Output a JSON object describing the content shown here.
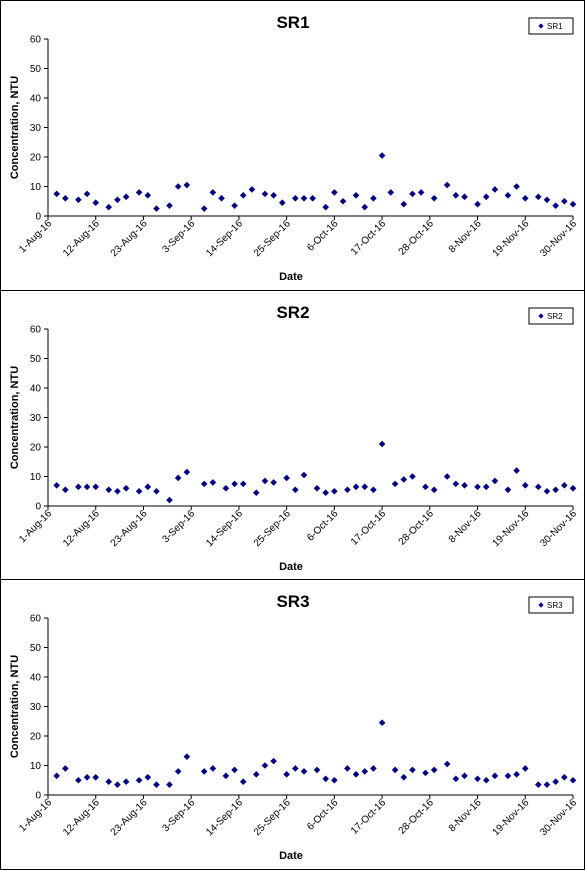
{
  "chart_data": [
    {
      "type": "scatter",
      "title": "SR1",
      "xlabel": "Date",
      "ylabel": "Concentration, NTU",
      "ylim": [
        0,
        60
      ],
      "yticks": [
        "0",
        "10",
        "20",
        "30",
        "40",
        "50",
        "60"
      ],
      "xlim": [
        "2016-08-01",
        "2016-11-30"
      ],
      "xticks": [
        "1-Aug-16",
        "12-Aug-16",
        "23-Aug-16",
        "3-Sep-16",
        "14-Sep-16",
        "25-Sep-16",
        "6-Oct-16",
        "17-Oct-16",
        "28-Oct-16",
        "8-Nov-16",
        "19-Nov-16",
        "30-Nov-16"
      ],
      "grid": false,
      "legend_position": "top-right",
      "marker_color": "#000080",
      "series": [
        {
          "name": "SR1",
          "x": [
            "2016-08-03",
            "2016-08-05",
            "2016-08-08",
            "2016-08-10",
            "2016-08-12",
            "2016-08-15",
            "2016-08-17",
            "2016-08-19",
            "2016-08-22",
            "2016-08-24",
            "2016-08-26",
            "2016-08-29",
            "2016-08-31",
            "2016-09-02",
            "2016-09-06",
            "2016-09-08",
            "2016-09-10",
            "2016-09-13",
            "2016-09-15",
            "2016-09-17",
            "2016-09-20",
            "2016-09-22",
            "2016-09-24",
            "2016-09-27",
            "2016-09-29",
            "2016-10-01",
            "2016-10-04",
            "2016-10-06",
            "2016-10-08",
            "2016-10-11",
            "2016-10-13",
            "2016-10-15",
            "2016-10-17",
            "2016-10-19",
            "2016-10-22",
            "2016-10-24",
            "2016-10-26",
            "2016-10-29",
            "2016-11-01",
            "2016-11-03",
            "2016-11-05",
            "2016-11-08",
            "2016-11-10",
            "2016-11-12",
            "2016-11-15",
            "2016-11-17",
            "2016-11-19",
            "2016-11-22",
            "2016-11-24",
            "2016-11-26",
            "2016-11-28",
            "2016-11-30"
          ],
          "y": [
            7.5,
            6,
            5.5,
            7.5,
            4.5,
            3,
            5.5,
            6.5,
            8,
            7,
            2.5,
            3.5,
            10,
            10.5,
            2.5,
            8,
            6,
            3.5,
            7,
            9,
            7.5,
            7,
            4.5,
            6,
            6,
            6,
            3,
            8,
            5,
            7,
            3,
            6,
            20.5,
            8,
            4,
            7.5,
            8,
            6,
            10.5,
            7,
            6.5,
            4,
            6.5,
            9,
            7,
            10,
            6,
            6.5,
            5.5,
            3.5,
            5,
            4
          ]
        }
      ]
    },
    {
      "type": "scatter",
      "title": "SR2",
      "xlabel": "Date",
      "ylabel": "Concentration, NTU",
      "ylim": [
        0,
        60
      ],
      "yticks": [
        "0",
        "10",
        "20",
        "30",
        "40",
        "50",
        "60"
      ],
      "xlim": [
        "2016-08-01",
        "2016-11-30"
      ],
      "xticks": [
        "1-Aug-16",
        "12-Aug-16",
        "23-Aug-16",
        "3-Sep-16",
        "14-Sep-16",
        "25-Sep-16",
        "6-Oct-16",
        "17-Oct-16",
        "28-Oct-16",
        "8-Nov-16",
        "19-Nov-16",
        "30-Nov-16"
      ],
      "grid": false,
      "legend_position": "top-right",
      "marker_color": "#000080",
      "series": [
        {
          "name": "SR2",
          "x": [
            "2016-08-03",
            "2016-08-05",
            "2016-08-08",
            "2016-08-10",
            "2016-08-12",
            "2016-08-15",
            "2016-08-17",
            "2016-08-19",
            "2016-08-22",
            "2016-08-24",
            "2016-08-26",
            "2016-08-29",
            "2016-08-31",
            "2016-09-02",
            "2016-09-06",
            "2016-09-08",
            "2016-09-11",
            "2016-09-13",
            "2016-09-15",
            "2016-09-18",
            "2016-09-20",
            "2016-09-22",
            "2016-09-25",
            "2016-09-27",
            "2016-09-29",
            "2016-10-02",
            "2016-10-04",
            "2016-10-06",
            "2016-10-09",
            "2016-10-11",
            "2016-10-13",
            "2016-10-15",
            "2016-10-17",
            "2016-10-20",
            "2016-10-22",
            "2016-10-24",
            "2016-10-27",
            "2016-10-29",
            "2016-11-01",
            "2016-11-03",
            "2016-11-05",
            "2016-11-08",
            "2016-11-10",
            "2016-11-12",
            "2016-11-15",
            "2016-11-17",
            "2016-11-19",
            "2016-11-22",
            "2016-11-24",
            "2016-11-26",
            "2016-11-28",
            "2016-11-30"
          ],
          "y": [
            7,
            5.5,
            6.5,
            6.5,
            6.5,
            5.5,
            5,
            6,
            5,
            6.5,
            5,
            2,
            9.5,
            11.5,
            7.5,
            8,
            6,
            7.5,
            7.5,
            4.5,
            8.5,
            8,
            9.5,
            5.5,
            10.5,
            6,
            4.5,
            5,
            5.5,
            6.5,
            6.5,
            5.5,
            21,
            7.5,
            9,
            10,
            6.5,
            5.5,
            10,
            7.5,
            7,
            6.5,
            6.5,
            8.5,
            5.5,
            12,
            7,
            6.5,
            5,
            5.5,
            7,
            6
          ]
        }
      ]
    },
    {
      "type": "scatter",
      "title": "SR3",
      "xlabel": "Date",
      "ylabel": "Concentration, NTU",
      "ylim": [
        0,
        60
      ],
      "yticks": [
        "0",
        "10",
        "20",
        "30",
        "40",
        "50",
        "60"
      ],
      "xlim": [
        "2016-08-01",
        "2016-11-30"
      ],
      "xticks": [
        "1-Aug-16",
        "12-Aug-16",
        "23-Aug-16",
        "3-Sep-16",
        "14-Sep-16",
        "25-Sep-16",
        "6-Oct-16",
        "17-Oct-16",
        "28-Oct-16",
        "8-Nov-16",
        "19-Nov-16",
        "30-Nov-16"
      ],
      "grid": false,
      "legend_position": "top-right",
      "marker_color": "#000080",
      "series": [
        {
          "name": "SR3",
          "x": [
            "2016-08-03",
            "2016-08-05",
            "2016-08-08",
            "2016-08-10",
            "2016-08-12",
            "2016-08-15",
            "2016-08-17",
            "2016-08-19",
            "2016-08-22",
            "2016-08-24",
            "2016-08-26",
            "2016-08-29",
            "2016-08-31",
            "2016-09-02",
            "2016-09-06",
            "2016-09-08",
            "2016-09-11",
            "2016-09-13",
            "2016-09-15",
            "2016-09-18",
            "2016-09-20",
            "2016-09-22",
            "2016-09-25",
            "2016-09-27",
            "2016-09-29",
            "2016-10-02",
            "2016-10-04",
            "2016-10-06",
            "2016-10-09",
            "2016-10-11",
            "2016-10-13",
            "2016-10-15",
            "2016-10-17",
            "2016-10-20",
            "2016-10-22",
            "2016-10-24",
            "2016-10-27",
            "2016-10-29",
            "2016-11-01",
            "2016-11-03",
            "2016-11-05",
            "2016-11-08",
            "2016-11-10",
            "2016-11-12",
            "2016-11-15",
            "2016-11-17",
            "2016-11-19",
            "2016-11-22",
            "2016-11-24",
            "2016-11-26",
            "2016-11-28",
            "2016-11-30"
          ],
          "y": [
            6.5,
            9,
            5,
            6,
            6,
            4.5,
            3.5,
            4.5,
            5,
            6,
            3.5,
            3.5,
            8,
            13,
            8,
            9,
            6.5,
            8.5,
            4.5,
            7,
            10,
            11.5,
            7,
            9,
            8,
            8.5,
            5.5,
            5,
            9,
            7,
            8,
            9,
            24.5,
            8.5,
            6,
            8.5,
            7.5,
            8.5,
            10.5,
            5.5,
            6.5,
            5.5,
            5,
            6.5,
            6.5,
            7,
            9,
            3.5,
            3.5,
            4.5,
            6,
            5
          ]
        }
      ]
    }
  ]
}
